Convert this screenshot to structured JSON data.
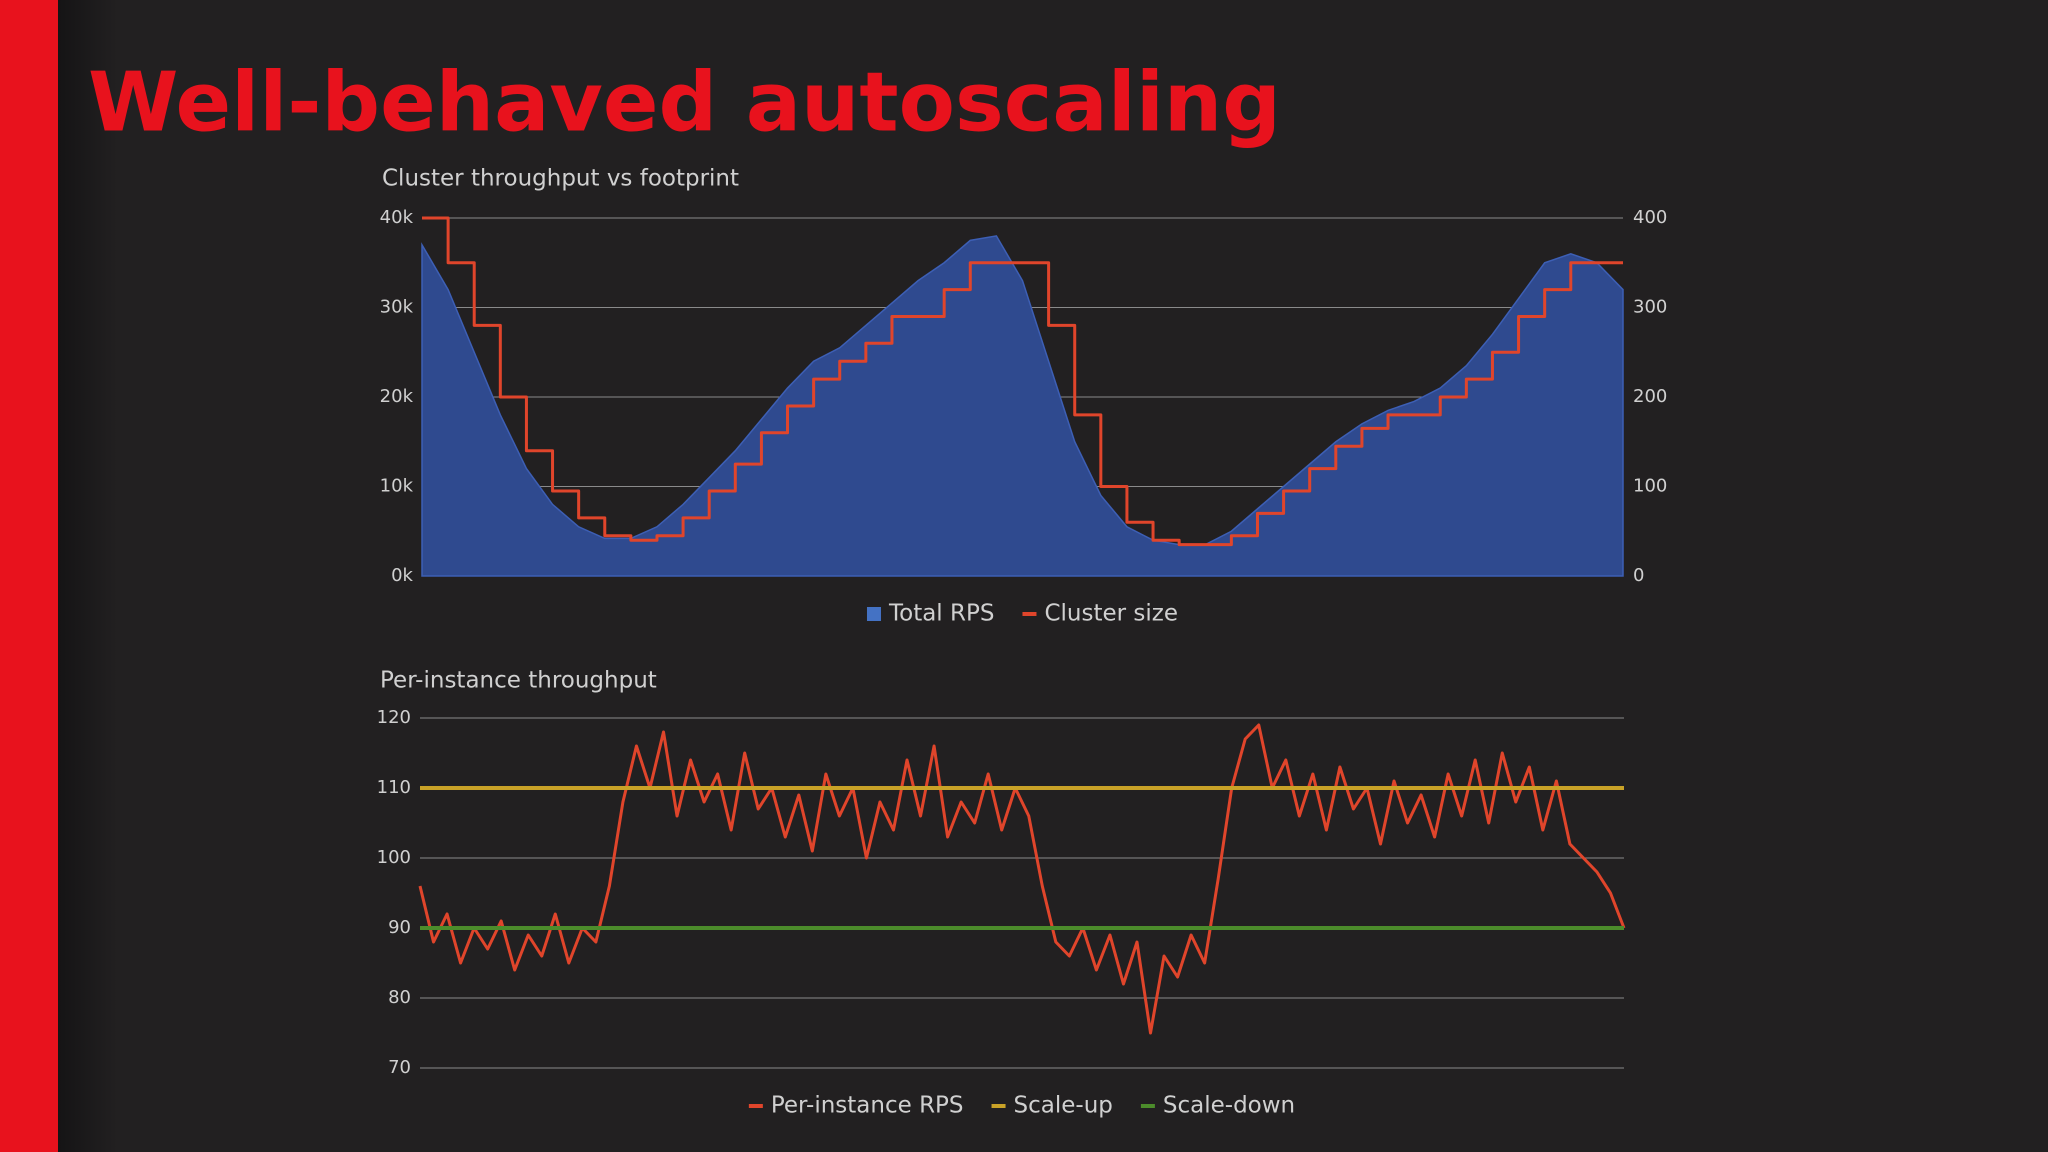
{
  "title": "Well-behaved autoscaling",
  "chart_data": [
    {
      "type": "area",
      "title": "Cluster throughput vs footprint",
      "ylim": [
        0,
        40000
      ],
      "yticks": [
        {
          "value": 0,
          "label": "0k"
        },
        {
          "value": 10000,
          "label": "10k"
        },
        {
          "value": 20000,
          "label": "20k"
        },
        {
          "value": 30000,
          "label": "30k"
        },
        {
          "value": 40000,
          "label": "40k"
        }
      ],
      "y2lim": [
        0,
        400
      ],
      "y2ticks": [
        0,
        100,
        200,
        300,
        400
      ],
      "grid": true,
      "legend": "bottom",
      "series": [
        {
          "name": "Total RPS",
          "color": "#2f4a8f",
          "values": [
            37000,
            32000,
            25000,
            18000,
            12000,
            8000,
            5500,
            4200,
            4200,
            5500,
            8000,
            11000,
            14000,
            17500,
            21000,
            24000,
            25500,
            28000,
            30500,
            33000,
            35000,
            37500,
            38000,
            33000,
            24000,
            15000,
            9000,
            5500,
            4000,
            3500,
            3500,
            5000,
            7500,
            10000,
            12500,
            15000,
            17000,
            18500,
            19500,
            21000,
            23500,
            27000,
            31000,
            35000,
            36000,
            35000,
            32000
          ]
        },
        {
          "name": "Cluster size",
          "color": "#e0452b",
          "axis": "y2",
          "step": true,
          "values": [
            400,
            350,
            280,
            200,
            140,
            95,
            65,
            45,
            40,
            45,
            65,
            95,
            125,
            160,
            190,
            220,
            240,
            260,
            290,
            290,
            320,
            350,
            350,
            350,
            280,
            180,
            100,
            60,
            40,
            35,
            35,
            45,
            70,
            95,
            120,
            145,
            165,
            180,
            180,
            200,
            220,
            250,
            290,
            320,
            350,
            350,
            350
          ]
        }
      ]
    },
    {
      "type": "line",
      "title": "Per-instance throughput",
      "ylim": [
        70,
        120
      ],
      "yticks": [
        70,
        80,
        90,
        100,
        110,
        120
      ],
      "grid": true,
      "legend": "bottom",
      "series": [
        {
          "name": "Per-instance RPS",
          "color": "#e0452b",
          "values": [
            96,
            88,
            92,
            85,
            90,
            87,
            91,
            84,
            89,
            86,
            92,
            85,
            90,
            88,
            96,
            108,
            116,
            110,
            118,
            106,
            114,
            108,
            112,
            104,
            115,
            107,
            110,
            103,
            109,
            101,
            112,
            106,
            110,
            100,
            108,
            104,
            114,
            106,
            116,
            103,
            108,
            105,
            112,
            104,
            110,
            106,
            96,
            88,
            86,
            90,
            84,
            89,
            82,
            88,
            75,
            86,
            83,
            89,
            85,
            97,
            110,
            117,
            119,
            110,
            114,
            106,
            112,
            104,
            113,
            107,
            110,
            102,
            111,
            105,
            109,
            103,
            112,
            106,
            114,
            105,
            115,
            108,
            113,
            104,
            111,
            102,
            100,
            98,
            95,
            90
          ]
        },
        {
          "name": "Scale-up",
          "color": "#c9a227",
          "value": 110
        },
        {
          "name": "Scale-down",
          "color": "#4c8c2b",
          "value": 90
        }
      ]
    }
  ]
}
